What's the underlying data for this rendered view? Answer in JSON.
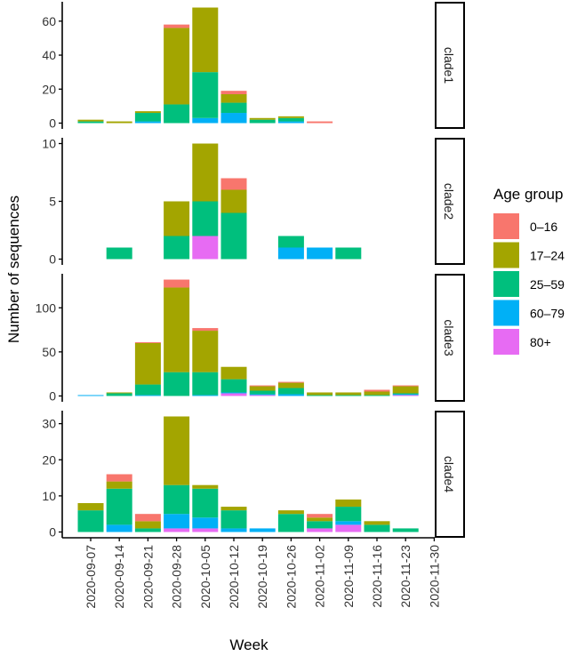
{
  "chart_data": {
    "type": "bar",
    "stacked": true,
    "xlabel": "Week",
    "ylabel": "Number of sequences",
    "legend": {
      "title": "Age group",
      "placement": "right"
    },
    "categories": [
      "2020-09-07",
      "2020-09-14",
      "2020-09-21",
      "2020-09-28",
      "2020-10-05",
      "2020-10-12",
      "2020-10-19",
      "2020-10-26",
      "2020-11-02",
      "2020-11-09",
      "2020-11-16",
      "2020-11-23",
      "2020-11-30"
    ],
    "groups": [
      {
        "name": "0–16",
        "color": "#F8766D"
      },
      {
        "name": "17–24",
        "color": "#A3A500"
      },
      {
        "name": "25–59",
        "color": "#00BF7D"
      },
      {
        "name": "60–79",
        "color": "#00B0F6"
      },
      {
        "name": "80+",
        "color": "#E76BF3"
      }
    ],
    "panels": [
      {
        "label": "clade1",
        "ylim": [
          -3.4,
          71.4
        ],
        "yticks": [
          0,
          20,
          40,
          60
        ],
        "series": {
          "80+": [
            0,
            0,
            0,
            0,
            0,
            0,
            0,
            0,
            0,
            0,
            0,
            0,
            0
          ],
          "60–79": [
            0,
            0,
            1,
            0,
            3,
            6,
            0,
            1,
            0,
            0,
            0,
            0,
            0
          ],
          "25–59": [
            1,
            0,
            5,
            11,
            27,
            6,
            2,
            2,
            0,
            0,
            0,
            0,
            0
          ],
          "17–24": [
            1,
            1,
            1,
            45,
            38,
            5,
            1,
            1,
            0,
            0,
            0,
            0,
            0
          ],
          "0–16": [
            0,
            0,
            0,
            2,
            0,
            2,
            0,
            0,
            1,
            0,
            0,
            0,
            0
          ]
        }
      },
      {
        "label": "clade2",
        "ylim": [
          -0.5,
          10.5
        ],
        "yticks": [
          0,
          5,
          10
        ],
        "series": {
          "80+": [
            0,
            0,
            0,
            0,
            2,
            0,
            0,
            0,
            0,
            0,
            0,
            0,
            0
          ],
          "60–79": [
            0,
            0,
            0,
            0,
            0,
            0,
            0,
            1,
            1,
            0,
            0,
            0,
            0
          ],
          "25–59": [
            0,
            1,
            0,
            2,
            3,
            4,
            0,
            1,
            0,
            1,
            0,
            0,
            0
          ],
          "17–24": [
            0,
            0,
            0,
            3,
            5,
            2,
            0,
            0,
            0,
            0,
            0,
            0,
            0
          ],
          "0–16": [
            0,
            0,
            0,
            0,
            0,
            1,
            0,
            0,
            0,
            0,
            0,
            0,
            0
          ]
        }
      },
      {
        "label": "clade3",
        "ylim": [
          -6.6,
          138.6
        ],
        "yticks": [
          0,
          50,
          100
        ],
        "series": {
          "80+": [
            0,
            0,
            0,
            0,
            0,
            3,
            1,
            0,
            0,
            0,
            0,
            1,
            0
          ],
          "60–79": [
            1,
            0,
            1,
            0,
            1,
            1,
            1,
            2,
            0,
            0,
            0,
            1,
            0
          ],
          "25–59": [
            0,
            3,
            12,
            27,
            26,
            15,
            4,
            7,
            1,
            1,
            1,
            1,
            0
          ],
          "17–24": [
            0,
            1,
            47,
            96,
            47,
            14,
            5,
            6,
            3,
            3,
            4,
            8,
            0
          ],
          "0–16": [
            0,
            0,
            1,
            9,
            3,
            0,
            1,
            1,
            0,
            0,
            2,
            1,
            0
          ]
        }
      },
      {
        "label": "clade4",
        "ylim": [
          -1.6,
          33.6
        ],
        "yticks": [
          0,
          10,
          20,
          30
        ],
        "series": {
          "80+": [
            0,
            0,
            0,
            1,
            1,
            0,
            0,
            0,
            1,
            2,
            0,
            0,
            0
          ],
          "60–79": [
            0,
            2,
            0,
            4,
            3,
            1,
            1,
            0,
            0,
            1,
            0,
            0,
            0
          ],
          "25–59": [
            6,
            10,
            1,
            8,
            8,
            5,
            0,
            5,
            2,
            4,
            2,
            1,
            0
          ],
          "17–24": [
            2,
            2,
            2,
            19,
            1,
            1,
            0,
            1,
            1,
            2,
            1,
            0,
            0
          ],
          "0–16": [
            0,
            2,
            2,
            0,
            0,
            0,
            0,
            0,
            1,
            0,
            0,
            0,
            0
          ]
        }
      }
    ]
  }
}
